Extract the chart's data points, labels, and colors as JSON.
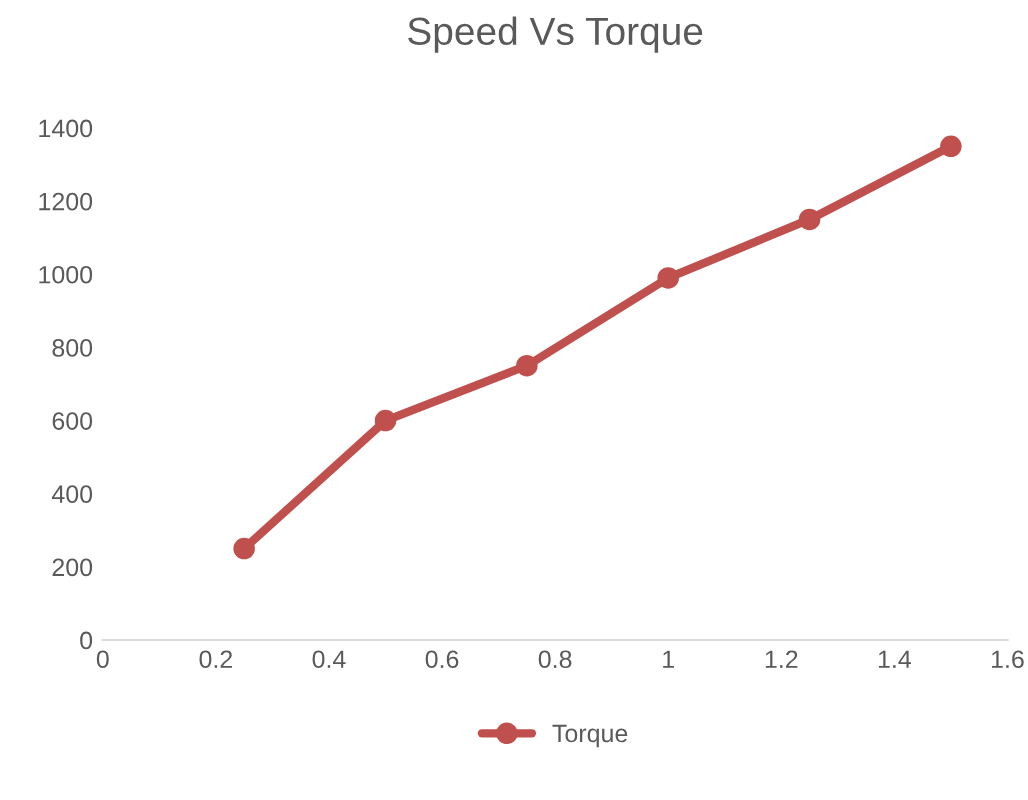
{
  "chart_data": {
    "type": "line",
    "title": "Speed Vs Torque",
    "x": [
      0.25,
      0.5,
      0.75,
      1,
      1.25,
      1.5
    ],
    "series": [
      {
        "name": "Torque",
        "color": "#c0504d",
        "values": [
          250,
          600,
          750,
          990,
          1150,
          1350
        ]
      }
    ],
    "xlim": [
      0,
      1.6
    ],
    "xticks": [
      0,
      0.2,
      0.4,
      0.6,
      0.8,
      1,
      1.2,
      1.4,
      1.6
    ],
    "ylim": [
      0,
      1400
    ],
    "yticks": [
      0,
      200,
      400,
      600,
      800,
      1000,
      1200,
      1400
    ],
    "grid": false,
    "legend": "bottom",
    "marker": "circle",
    "line_style": "solid"
  }
}
